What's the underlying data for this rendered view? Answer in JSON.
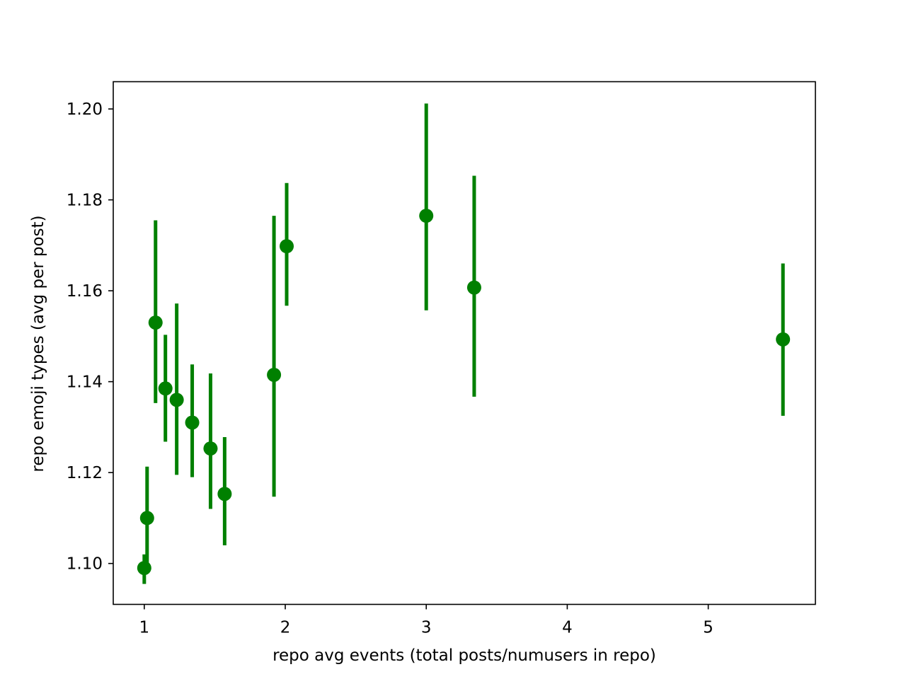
{
  "chart_data": {
    "type": "scatter",
    "title": "",
    "xlabel": "repo avg events (total posts/numusers in repo)",
    "ylabel": "repo emoji types (avg per post)",
    "xlim": [
      0.78,
      5.76
    ],
    "ylim": [
      1.091,
      1.206
    ],
    "xticks": [
      1,
      2,
      3,
      4,
      5
    ],
    "yticks": [
      1.1,
      1.12,
      1.14,
      1.16,
      1.18,
      1.2
    ],
    "xtick_labels": [
      "1",
      "2",
      "3",
      "4",
      "5"
    ],
    "ytick_labels": [
      "1.10",
      "1.12",
      "1.14",
      "1.16",
      "1.18",
      "1.20"
    ],
    "grid": false,
    "legend": false,
    "marker_color": "#008000",
    "points": [
      {
        "x": 1.0,
        "y": 1.099,
        "yerr_low": 1.0955,
        "yerr_high": 1.102
      },
      {
        "x": 1.02,
        "y": 1.11,
        "yerr_low": 1.0985,
        "yerr_high": 1.1213
      },
      {
        "x": 1.08,
        "y": 1.153,
        "yerr_low": 1.1353,
        "yerr_high": 1.1755
      },
      {
        "x": 1.15,
        "y": 1.1385,
        "yerr_low": 1.1268,
        "yerr_high": 1.1503
      },
      {
        "x": 1.23,
        "y": 1.136,
        "yerr_low": 1.1195,
        "yerr_high": 1.1572
      },
      {
        "x": 1.34,
        "y": 1.131,
        "yerr_low": 1.119,
        "yerr_high": 1.1438
      },
      {
        "x": 1.47,
        "y": 1.1253,
        "yerr_low": 1.112,
        "yerr_high": 1.1418
      },
      {
        "x": 1.57,
        "y": 1.1153,
        "yerr_low": 1.104,
        "yerr_high": 1.1278
      },
      {
        "x": 1.92,
        "y": 1.1415,
        "yerr_low": 1.1147,
        "yerr_high": 1.1765
      },
      {
        "x": 2.01,
        "y": 1.1698,
        "yerr_low": 1.1567,
        "yerr_high": 1.1837
      },
      {
        "x": 3.0,
        "y": 1.1765,
        "yerr_low": 1.1557,
        "yerr_high": 1.2012
      },
      {
        "x": 3.34,
        "y": 1.1607,
        "yerr_low": 1.1367,
        "yerr_high": 1.1853
      },
      {
        "x": 5.53,
        "y": 1.1493,
        "yerr_low": 1.1325,
        "yerr_high": 1.166
      }
    ]
  }
}
